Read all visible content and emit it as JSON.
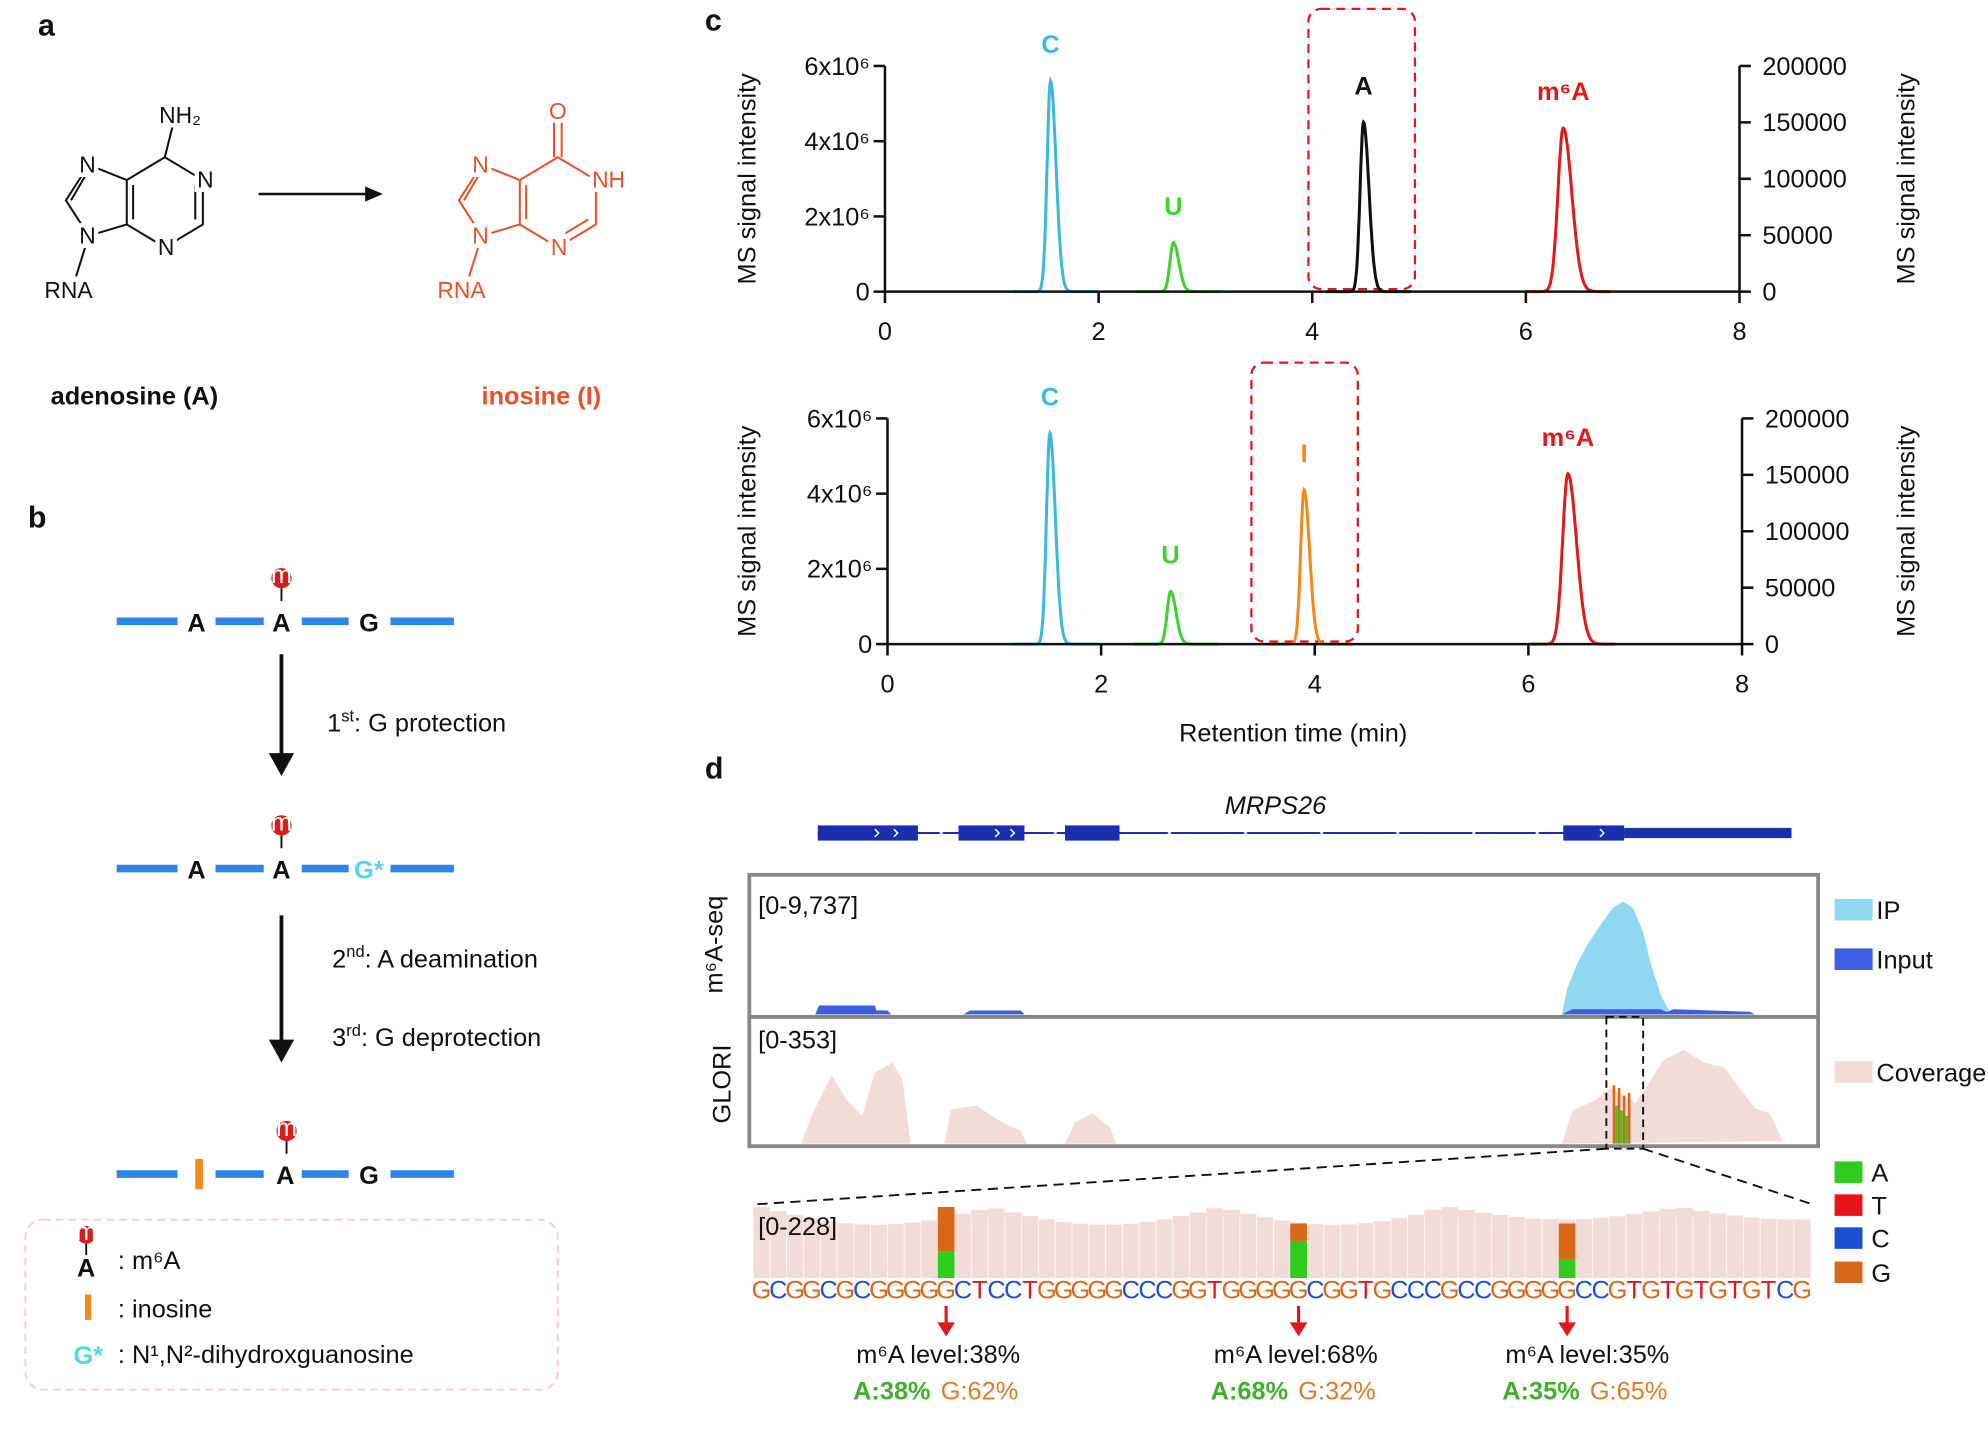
{
  "panel_a": {
    "label": "a",
    "adenosine": {
      "atoms": [
        "NH₂",
        "N",
        "N",
        "N",
        "N",
        "RNA"
      ],
      "name": "adenosine (A)"
    },
    "inosine": {
      "atoms": [
        "O",
        "NH",
        "N",
        "N",
        "N",
        "RNA"
      ],
      "name": "inosine (I)"
    }
  },
  "panel_b": {
    "label": "b",
    "strands": [
      {
        "mark": "m",
        "bases": [
          "A",
          "A",
          "G"
        ]
      },
      {
        "mark": "m",
        "bases": [
          "A",
          "A",
          "G*"
        ]
      },
      {
        "mark": "m",
        "bases": [
          "A",
          "G"
        ]
      }
    ],
    "steps": [
      {
        "n": "1",
        "sup": "st",
        "text": ": G protection"
      },
      {
        "n": "2",
        "sup": "nd",
        "text": ": A deamination"
      },
      {
        "n": "3",
        "sup": "rd",
        "text": ": G deprotection"
      }
    ],
    "legend": [
      {
        "symbol": "m",
        "base": "A",
        "text": ": m⁶A"
      },
      {
        "text": ": inosine"
      },
      {
        "symbol": "G*",
        "text": ": N¹,N²-dihydroxguanosine"
      }
    ]
  },
  "panel_c": {
    "label": "c",
    "x_label": "Retention time (min)",
    "charts": [
      {
        "y_label": "MS signal intensity",
        "y2_label": "MS signal intensity",
        "xlim": [
          0,
          8
        ],
        "xticks": [
          0,
          2,
          4,
          6,
          8
        ],
        "ylim": [
          0,
          6000000
        ],
        "yticks": [
          0,
          {
            "value": 2000000,
            "label": "2x10⁶"
          },
          {
            "value": 4000000,
            "label": "4x10⁶"
          },
          {
            "value": 6000000,
            "label": "6x10⁶"
          }
        ],
        "y2lim": [
          0,
          200000
        ],
        "y2ticks": [
          0,
          50000,
          100000,
          150000,
          200000
        ],
        "peaks": [
          {
            "label": "C",
            "color": "#3ab9e0",
            "x": 1.55,
            "height": 5600000
          },
          {
            "label": "U",
            "color": "#3ed12f",
            "x": 2.7,
            "height": 1300000
          },
          {
            "label": "A",
            "color": "#111111",
            "x": 4.48,
            "height": 4500000
          },
          {
            "label": "m⁶A",
            "color": "#e0191b",
            "x": 6.35,
            "height": 145000,
            "axis": "y2"
          }
        ]
      },
      {
        "y_label": "MS signal intensity",
        "y2_label": "MS signal intensity",
        "xlim": [
          0,
          8
        ],
        "xticks": [
          0,
          2,
          4,
          6,
          8
        ],
        "ylim": [
          0,
          6000000
        ],
        "yticks": [
          0,
          {
            "value": 2000000,
            "label": "2x10⁶"
          },
          {
            "value": 4000000,
            "label": "4x10⁶"
          },
          {
            "value": 6000000,
            "label": "6x10⁶"
          }
        ],
        "y2lim": [
          0,
          200000
        ],
        "y2ticks": [
          0,
          50000,
          100000,
          150000,
          200000
        ],
        "peaks": [
          {
            "label": "C",
            "color": "#3ab9e0",
            "x": 1.52,
            "height": 5600000
          },
          {
            "label": "U",
            "color": "#3ed12f",
            "x": 2.65,
            "height": 1400000
          },
          {
            "label": "I",
            "color": "#f08a1c",
            "x": 3.9,
            "height": 4100000
          },
          {
            "label": "m⁶A",
            "color": "#e0191b",
            "x": 6.37,
            "height": 151000,
            "axis": "y2"
          }
        ]
      }
    ]
  },
  "panel_d": {
    "label": "d",
    "gene": "MRPS26",
    "tracks": [
      {
        "name": "m⁶A-seq",
        "range": "[0-9,737]"
      },
      {
        "name": "GLORI",
        "range": "[0-353]"
      }
    ],
    "legend": [
      {
        "name": "IP",
        "color": "#8fd8ef"
      },
      {
        "name": "Input",
        "color": "#3d5ee0"
      },
      {
        "name": "Coverage",
        "color": "#f2dcd8"
      }
    ],
    "bases": [
      {
        "name": "A",
        "color": "#2fcc1f"
      },
      {
        "name": "T",
        "color": "#e8141a"
      },
      {
        "name": "C",
        "color": "#1a4fd6"
      },
      {
        "name": "G",
        "color": "#d9671a"
      }
    ],
    "zoom_range": "[0-228]",
    "sequence": [
      "G",
      "C",
      "G",
      "G",
      "C",
      "G",
      "C",
      "G",
      "G",
      "G",
      "G",
      "G",
      "C",
      "T",
      "C",
      "C",
      "T",
      "G",
      "G",
      "G",
      "G",
      "G",
      "C",
      "C",
      "C",
      "G",
      "G",
      "T",
      "G",
      "G",
      "G",
      "G",
      "G",
      "C",
      "G",
      "G",
      "T",
      "G",
      "C",
      "C",
      "C",
      "G",
      "C",
      "C",
      "G",
      "G",
      "G",
      "G",
      "G",
      "C",
      "C",
      "G",
      "T",
      "G",
      "T",
      "G",
      "T",
      "G",
      "T",
      "G",
      "T",
      "C",
      "G"
    ],
    "sites": [
      {
        "level": "m⁶A level:38%",
        "A": "A:38%",
        "G": "G:62%"
      },
      {
        "level": "m⁶A level:68%",
        "A": "A:68%",
        "G": "G:32%"
      },
      {
        "level": "m⁶A level:35%",
        "A": "A:35%",
        "G": "G:65%"
      }
    ]
  }
}
